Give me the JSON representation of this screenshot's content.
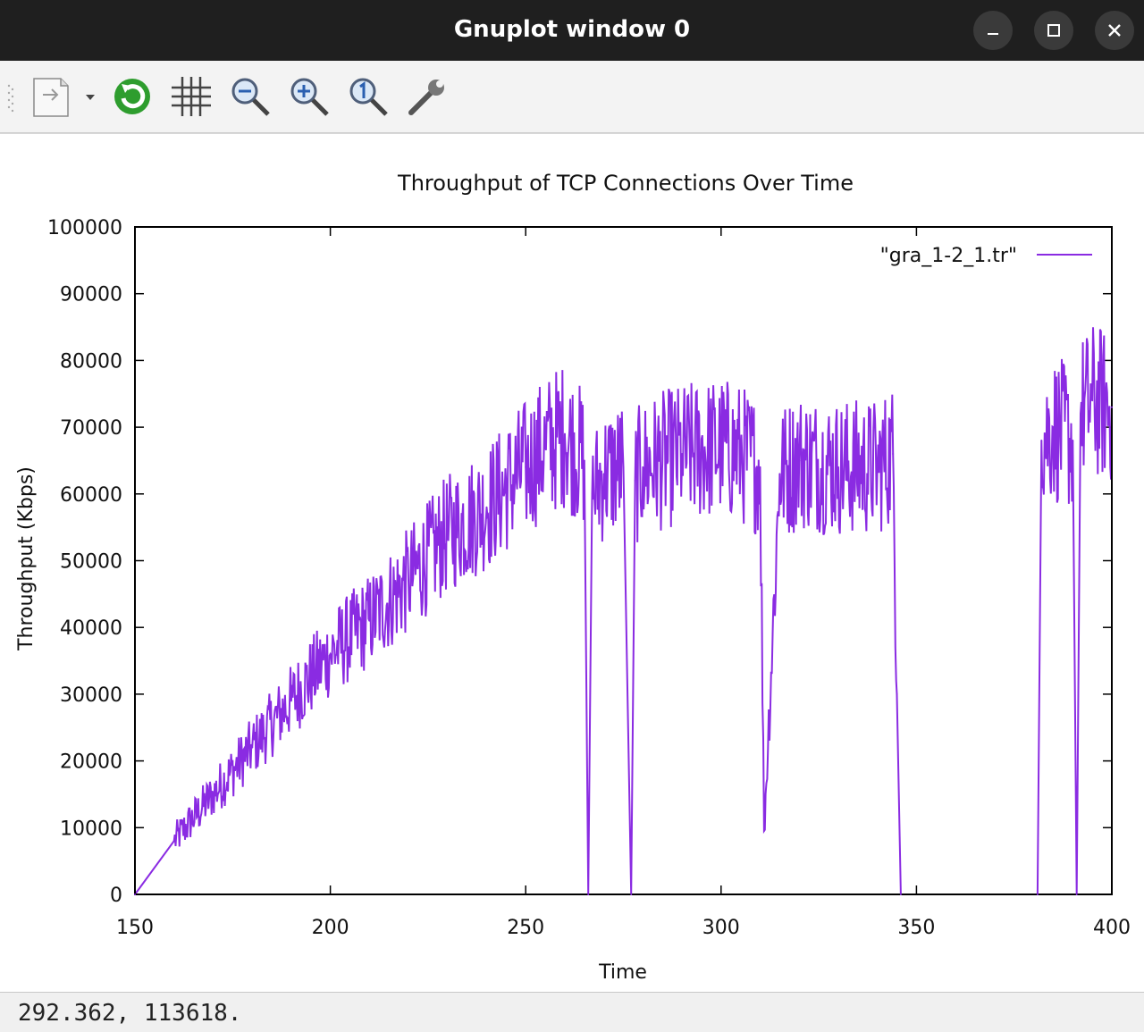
{
  "window": {
    "title": "Gnuplot window 0"
  },
  "toolbar": {
    "items": [
      "export-menu",
      "replot",
      "grid",
      "zoom-out",
      "zoom-in",
      "unzoom",
      "settings"
    ]
  },
  "colors": {
    "series": "#8a2be2",
    "titlebar": "#1f1f1f"
  },
  "status": {
    "coords": "292.362,  113618."
  },
  "chart_data": {
    "type": "line",
    "title": "Throughput of TCP Connections Over Time",
    "xlabel": "Time",
    "ylabel": "Throughput (Kbps)",
    "xlim": [
      150,
      400
    ],
    "ylim": [
      0,
      100000
    ],
    "xticks": [
      "150",
      "200",
      "250",
      "300",
      "350",
      "400"
    ],
    "yticks": [
      "0",
      "10000",
      "20000",
      "30000",
      "40000",
      "50000",
      "60000",
      "70000",
      "80000",
      "90000",
      "100000"
    ],
    "legend_position": "top-right",
    "series": [
      {
        "name": "\"gra_1-2_1.tr\"",
        "x": [
          150,
          160,
          170,
          180,
          190,
          200,
          210,
          220,
          230,
          240,
          250,
          255,
          260,
          265,
          266,
          267,
          270,
          275,
          277,
          278,
          280,
          290,
          300,
          305,
          310,
          311,
          315,
          320,
          330,
          340,
          344,
          345,
          346,
          381,
          382,
          385,
          390,
          391,
          392,
          395,
          400
        ],
        "values": [
          0,
          8000,
          15000,
          22000,
          29000,
          36000,
          41000,
          47000,
          54000,
          58000,
          64000,
          67000,
          69000,
          65000,
          0,
          60000,
          63000,
          64000,
          0,
          62000,
          64000,
          66000,
          67000,
          66000,
          64000,
          9500,
          63000,
          65000,
          64000,
          64000,
          66000,
          30000,
          0,
          0,
          68000,
          70000,
          68000,
          0,
          72000,
          74000,
          73000
        ],
        "color": "#8a2be2"
      }
    ]
  }
}
